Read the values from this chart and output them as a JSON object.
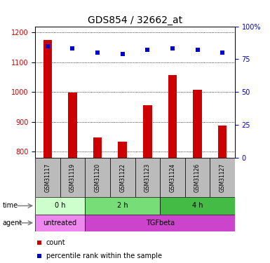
{
  "title": "GDS854 / 32662_at",
  "samples": [
    "GSM31117",
    "GSM31119",
    "GSM31120",
    "GSM31122",
    "GSM31123",
    "GSM31124",
    "GSM31126",
    "GSM31127"
  ],
  "counts": [
    1175,
    998,
    848,
    835,
    955,
    1058,
    1008,
    888
  ],
  "percentiles": [
    85,
    83,
    80,
    79,
    82,
    83,
    82,
    80
  ],
  "ylim_left": [
    780,
    1220
  ],
  "ylim_right": [
    0,
    100
  ],
  "bar_color": "#cc0000",
  "dot_color": "#0000cc",
  "time_groups": [
    {
      "label": "0 h",
      "start": 0,
      "end": 2,
      "color": "#ccffcc"
    },
    {
      "label": "2 h",
      "start": 2,
      "end": 5,
      "color": "#77dd77"
    },
    {
      "label": "4 h",
      "start": 5,
      "end": 8,
      "color": "#44bb44"
    }
  ],
  "agent_groups": [
    {
      "label": "untreated",
      "start": 0,
      "end": 2,
      "color": "#ee88ee"
    },
    {
      "label": "TGFbeta",
      "start": 2,
      "end": 8,
      "color": "#cc44cc"
    }
  ],
  "sample_bg_color": "#bbbbbb",
  "title_fontsize": 10,
  "tick_fontsize": 7,
  "bar_width": 0.35
}
